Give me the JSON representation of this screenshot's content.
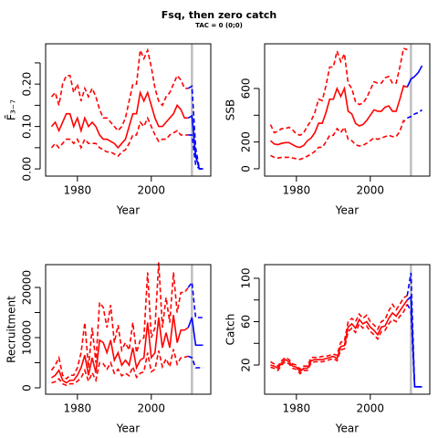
{
  "title": "Fsq, then zero catch",
  "subtitle": "TAC = 0 (0;0)",
  "chart_data": [
    {
      "type": "line",
      "xlabel": "Year",
      "ylabel": "F̄₃₋₇",
      "x": [
        1973,
        1974,
        1975,
        1976,
        1977,
        1978,
        1979,
        1980,
        1981,
        1982,
        1983,
        1984,
        1985,
        1986,
        1987,
        1988,
        1989,
        1990,
        1991,
        1992,
        1993,
        1994,
        1995,
        1996,
        1997,
        1998,
        1999,
        2000,
        2001,
        2002,
        2003,
        2004,
        2005,
        2006,
        2007,
        2008,
        2009,
        2010
      ],
      "series": [
        {
          "color": "#ff0000",
          "dash": false,
          "values": [
            0.1,
            0.11,
            0.09,
            0.11,
            0.13,
            0.13,
            0.1,
            0.12,
            0.09,
            0.12,
            0.1,
            0.11,
            0.1,
            0.08,
            0.07,
            0.07,
            0.065,
            0.06,
            0.05,
            0.06,
            0.07,
            0.1,
            0.13,
            0.13,
            0.18,
            0.16,
            0.18,
            0.15,
            0.12,
            0.1,
            0.1,
            0.11,
            0.12,
            0.13,
            0.15,
            0.14,
            0.12,
            0.12
          ]
        },
        {
          "color": "#ff0000",
          "dash": true,
          "values": [
            0.17,
            0.18,
            0.15,
            0.2,
            0.22,
            0.22,
            0.18,
            0.2,
            0.16,
            0.19,
            0.17,
            0.19,
            0.17,
            0.14,
            0.12,
            0.12,
            0.11,
            0.1,
            0.09,
            0.1,
            0.12,
            0.16,
            0.2,
            0.2,
            0.28,
            0.26,
            0.28,
            0.24,
            0.19,
            0.16,
            0.15,
            0.17,
            0.18,
            0.2,
            0.22,
            0.21,
            0.19,
            0.19
          ]
        },
        {
          "color": "#ff0000",
          "dash": true,
          "values": [
            0.05,
            0.06,
            0.05,
            0.06,
            0.07,
            0.07,
            0.06,
            0.07,
            0.05,
            0.07,
            0.06,
            0.06,
            0.06,
            0.05,
            0.045,
            0.04,
            0.04,
            0.035,
            0.03,
            0.04,
            0.045,
            0.06,
            0.08,
            0.08,
            0.11,
            0.1,
            0.12,
            0.1,
            0.08,
            0.065,
            0.07,
            0.07,
            0.08,
            0.085,
            0.09,
            0.08,
            0.08,
            0.08
          ]
        },
        {
          "color": "#0000ff",
          "dash": false,
          "x": [
            2010,
            2011,
            2012,
            2013,
            2014
          ],
          "values": [
            0.12,
            0.125,
            0.03,
            0,
            0
          ]
        },
        {
          "color": "#0000ff",
          "dash": true,
          "x": [
            2010,
            2011,
            2012,
            2013,
            2014
          ],
          "values": [
            0.19,
            0.195,
            0.05,
            0,
            0
          ]
        },
        {
          "color": "#0000ff",
          "dash": true,
          "x": [
            2010,
            2011,
            2012,
            2013,
            2014
          ],
          "values": [
            0.08,
            0.08,
            0.01,
            0,
            0
          ]
        }
      ],
      "vline": 2011,
      "vline_color": "#bebebe",
      "xlim": [
        1971.4,
        2016.1
      ],
      "xticks": [
        1980,
        2000
      ],
      "ylim": [
        -0.017,
        0.295
      ],
      "yticks": [
        {
          "value": 0,
          "label": "0.00"
        },
        {
          "value": 0.05,
          "label": null
        },
        {
          "value": 0.1,
          "label": "0.10"
        },
        {
          "value": 0.15,
          "label": null
        },
        {
          "value": 0.2,
          "label": "0.20"
        },
        {
          "value": 0.25,
          "label": null
        }
      ]
    },
    {
      "type": "line",
      "xlabel": "Year",
      "ylabel": "SSB",
      "x": [
        1973,
        1974,
        1975,
        1976,
        1977,
        1978,
        1979,
        1980,
        1981,
        1982,
        1983,
        1984,
        1985,
        1986,
        1987,
        1988,
        1989,
        1990,
        1991,
        1992,
        1993,
        1994,
        1995,
        1996,
        1997,
        1998,
        1999,
        2000,
        2001,
        2002,
        2003,
        2004,
        2005,
        2006,
        2007,
        2008,
        2009,
        2010
      ],
      "series": [
        {
          "color": "#ff0000",
          "dash": false,
          "values": [
            210,
            185,
            180,
            190,
            195,
            195,
            180,
            165,
            160,
            175,
            210,
            230,
            270,
            340,
            340,
            420,
            520,
            520,
            600,
            540,
            600,
            430,
            410,
            340,
            320,
            330,
            360,
            400,
            440,
            430,
            430,
            460,
            470,
            430,
            430,
            520,
            620,
            610
          ]
        },
        {
          "color": "#ff0000",
          "dash": true,
          "values": [
            330,
            270,
            280,
            300,
            300,
            310,
            290,
            260,
            250,
            270,
            320,
            360,
            420,
            520,
            510,
            620,
            760,
            760,
            880,
            800,
            860,
            640,
            600,
            500,
            480,
            490,
            530,
            590,
            650,
            640,
            640,
            680,
            690,
            640,
            640,
            760,
            900,
            890
          ]
        },
        {
          "color": "#ff0000",
          "dash": true,
          "values": [
            100,
            85,
            80,
            85,
            85,
            85,
            80,
            75,
            70,
            80,
            95,
            110,
            130,
            160,
            160,
            200,
            250,
            250,
            300,
            270,
            310,
            220,
            210,
            180,
            170,
            175,
            190,
            210,
            230,
            220,
            230,
            240,
            250,
            240,
            240,
            280,
            360,
            350
          ]
        },
        {
          "color": "#0000ff",
          "dash": false,
          "x": [
            2010,
            2011,
            2012,
            2013,
            2014
          ],
          "values": [
            610,
            670,
            690,
            720,
            770
          ]
        },
        {
          "color": "#0000ff",
          "dash": true,
          "x": [
            2010,
            2011,
            2012,
            2013,
            2014
          ],
          "values": [
            380,
            390,
            410,
            420,
            440
          ]
        }
      ],
      "vline": 2011,
      "vline_color": "#bebebe",
      "xlim": [
        1971.4,
        2016.1
      ],
      "xticks": [
        1980,
        2000
      ],
      "ylim": [
        -55,
        934
      ],
      "yticks": [
        0,
        200,
        {
          "value": 400,
          "label": null
        },
        600
      ]
    },
    {
      "type": "line",
      "xlabel": "Year",
      "ylabel": "Recruitment",
      "x": [
        1973,
        1974,
        1975,
        1976,
        1977,
        1978,
        1979,
        1980,
        1981,
        1982,
        1983,
        1984,
        1985,
        1986,
        1987,
        1988,
        1989,
        1990,
        1991,
        1992,
        1993,
        1994,
        1995,
        1996,
        1997,
        1998,
        1999,
        2000,
        2001,
        2002,
        2003,
        2004,
        2005,
        2006,
        2007,
        2008,
        2009,
        2010
      ],
      "series": [
        {
          "color": "#ff0000",
          "dash": false,
          "values": [
            2000,
            2500,
            3500,
            1500,
            1000,
            1500,
            1500,
            2500,
            4000,
            6500,
            2500,
            6000,
            3000,
            9500,
            9000,
            7000,
            9500,
            5500,
            7000,
            4500,
            5500,
            4500,
            8000,
            4000,
            5500,
            6000,
            13000,
            6000,
            7000,
            14000,
            8000,
            11000,
            8000,
            14500,
            9000,
            11500,
            11500,
            12000
          ]
        },
        {
          "color": "#ff0000",
          "dash": true,
          "values": [
            3500,
            4500,
            6000,
            2500,
            1800,
            2500,
            2500,
            4000,
            7000,
            13000,
            4000,
            12000,
            5000,
            17000,
            16000,
            12000,
            16500,
            9000,
            12500,
            7500,
            9000,
            7500,
            13000,
            7000,
            9500,
            10000,
            23000,
            10000,
            12000,
            25000,
            12000,
            18000,
            13000,
            23000,
            15000,
            19000,
            19000,
            20000
          ]
        },
        {
          "color": "#ff0000",
          "dash": true,
          "values": [
            1000,
            1200,
            1800,
            800,
            500,
            800,
            800,
            1300,
            2000,
            3500,
            1300,
            3000,
            1500,
            5000,
            4800,
            3700,
            5000,
            2900,
            3700,
            2400,
            2900,
            2400,
            4200,
            2100,
            2900,
            3200,
            7000,
            3200,
            3700,
            7400,
            4200,
            5800,
            4200,
            7700,
            4700,
            6000,
            6100,
            6300
          ]
        },
        {
          "color": "#0000ff",
          "dash": false,
          "x": [
            2010,
            2011,
            2012,
            2013,
            2014
          ],
          "values": [
            12000,
            14000,
            8500,
            8500,
            8500
          ]
        },
        {
          "color": "#0000ff",
          "dash": true,
          "x": [
            2010,
            2011,
            2012,
            2013,
            2014
          ],
          "values": [
            20000,
            21000,
            14000,
            14000,
            14000
          ]
        },
        {
          "color": "#0000ff",
          "dash": true,
          "x": [
            2010,
            2011,
            2012,
            2013,
            2014
          ],
          "values": [
            6300,
            6000,
            4000,
            4000,
            4000
          ]
        }
      ],
      "vline": 2011,
      "vline_color": "#bebebe",
      "xlim": [
        1971.4,
        2016.1
      ],
      "xticks": [
        1980,
        2000
      ],
      "ylim": [
        -1270,
        24545
      ],
      "yticks": [
        0,
        {
          "value": 5000,
          "label": null
        },
        10000,
        {
          "value": 15000,
          "label": null
        },
        20000
      ]
    },
    {
      "type": "line",
      "xlabel": "Year",
      "ylabel": "Catch",
      "x": [
        1973,
        1974,
        1975,
        1976,
        1977,
        1978,
        1979,
        1980,
        1981,
        1982,
        1983,
        1984,
        1985,
        1986,
        1987,
        1988,
        1989,
        1990,
        1991,
        1992,
        1993,
        1994,
        1995,
        1996,
        1997,
        1998,
        1999,
        2000,
        2001,
        2002,
        2003,
        2004,
        2005,
        2006,
        2007,
        2008,
        2009,
        2010
      ],
      "series": [
        {
          "color": "#ff0000",
          "dash": false,
          "values": [
            20,
            19,
            17,
            22,
            25,
            23,
            19,
            18,
            14,
            17,
            17,
            24,
            25,
            25,
            25,
            26,
            27,
            28,
            26,
            37,
            38,
            55,
            58,
            54,
            62,
            58,
            60,
            55,
            52,
            48,
            55,
            56,
            63,
            68,
            65,
            70,
            75,
            80
          ]
        },
        {
          "color": "#ff0000",
          "dash": true,
          "values": [
            23,
            21,
            19,
            24,
            27,
            25,
            21,
            20,
            16,
            19,
            19,
            27,
            27,
            27,
            28,
            28,
            29,
            30,
            29,
            41,
            42,
            60,
            63,
            60,
            67,
            63,
            66,
            60,
            57,
            53,
            60,
            62,
            70,
            76,
            71,
            76,
            82,
            84
          ]
        },
        {
          "color": "#ff0000",
          "dash": true,
          "values": [
            18,
            17,
            15,
            20,
            23,
            21,
            17,
            16,
            12,
            15,
            15,
            22,
            23,
            23,
            23,
            24,
            25,
            26,
            24,
            34,
            35,
            51,
            54,
            50,
            58,
            54,
            56,
            51,
            48,
            44,
            51,
            52,
            58,
            62,
            60,
            65,
            69,
            76
          ]
        },
        {
          "color": "#0000ff",
          "dash": false,
          "x": [
            2010,
            2011,
            2012,
            2013,
            2014
          ],
          "values": [
            80,
            83,
            0,
            0,
            0
          ]
        },
        {
          "color": "#0000ff",
          "dash": true,
          "x": [
            2010,
            2011,
            2012,
            2013,
            2014
          ],
          "values": [
            84,
            105,
            0,
            0,
            0
          ]
        },
        {
          "color": "#0000ff",
          "dash": true,
          "x": [
            2010,
            2011,
            2012,
            2013,
            2014
          ],
          "values": [
            76,
            70,
            0,
            0,
            0
          ]
        }
      ],
      "vline": 2011,
      "vline_color": "#bebebe",
      "xlim": [
        1971.4,
        2016.1
      ],
      "xticks": [
        1980,
        2000
      ],
      "ylim": [
        -6.9,
        112.6
      ],
      "yticks": [
        20,
        {
          "value": 40,
          "label": null
        },
        60,
        {
          "value": 80,
          "label": null
        },
        100
      ]
    }
  ]
}
